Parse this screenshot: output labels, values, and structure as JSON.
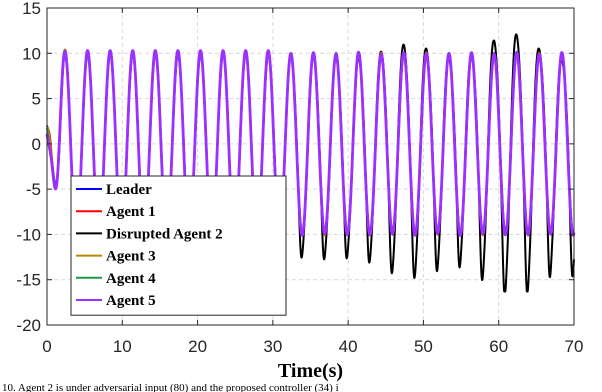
{
  "chart_data": {
    "type": "line",
    "title": "",
    "xlabel": "Time(s)",
    "ylabel": "",
    "xlim": [
      0,
      70
    ],
    "ylim": [
      -20,
      15
    ],
    "xticks": [
      "0",
      "10",
      "20",
      "30",
      "40",
      "50",
      "60",
      "70"
    ],
    "yticks": [
      "-20",
      "-15",
      "-10",
      "-5",
      "0",
      "5",
      "10",
      "15"
    ],
    "grid": true,
    "legend_position": "lower-left",
    "signal": {
      "period": 3.0,
      "first_peak_time": 2.4,
      "disruption_start": 30,
      "pre_disruption_amplitude": 10.3,
      "leader_amplitude": 10.0,
      "disrupted_peak_max": 14.6,
      "disrupted_trough_min": -16.3
    },
    "series": [
      {
        "name": "Leader",
        "color": "#0000ff"
      },
      {
        "name": "Agent 1",
        "color": "#ff0000"
      },
      {
        "name": "Disrupted Agent 2",
        "color": "#000000"
      },
      {
        "name": "Agent 3",
        "color": "#b8860b"
      },
      {
        "name": "Agent 4",
        "color": "#1f9a48"
      },
      {
        "name": "Agent 5",
        "color": "#9b30ff"
      }
    ]
  },
  "caption": {
    "text": "10. Agent 2 is under adversarial input (80) and the proposed controller (34) i"
  }
}
